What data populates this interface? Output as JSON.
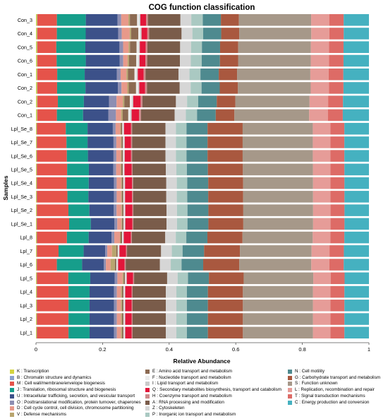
{
  "chart_data": {
    "type": "bar",
    "orientation": "horizontal",
    "stacked": true,
    "title": "COG function classification",
    "xlabel": "Relative Abundance",
    "ylabel": "Samples",
    "xlim": [
      0,
      1
    ],
    "xticks": [
      "0",
      "0.2",
      "0.4",
      "0.6",
      "0.8",
      "1"
    ],
    "categories": [
      "Con_3",
      "Con_4",
      "Con_5",
      "Con_6",
      "Con_1",
      "Con_2",
      "Con_2",
      "Con_1",
      "Lpl_Se_8",
      "Lpl_Se_7",
      "Lpl_Se_6",
      "Lpl_Se_5",
      "Lpl_Se_4",
      "Lpl_Se_3",
      "Lpl_Se_2",
      "Lpl_Se_1",
      "Lpl_8",
      "Lpl_7",
      "Lpl_6",
      "Lpl_5",
      "Lpl_4",
      "Lpl_3",
      "Lpl_2",
      "Lpl_1"
    ],
    "segment_order": [
      "K",
      "B",
      "M",
      "J",
      "U",
      "O",
      "D",
      "V",
      "E",
      "F",
      "I",
      "Q",
      "H",
      "A",
      "Z",
      "P",
      "N",
      "G",
      "S",
      "L",
      "T",
      "C"
    ],
    "series": [
      {
        "key": "K",
        "name": "K : Transcription",
        "color": "#d4d441",
        "values": [
          0.003,
          0.003,
          0.003,
          0.003,
          0.003,
          0.003,
          0.003,
          0.003,
          0.002,
          0.002,
          0.002,
          0.002,
          0.002,
          0.002,
          0.002,
          0.002,
          0.002,
          0.002,
          0.002,
          0.002,
          0.002,
          0.002,
          0.002,
          0.002
        ]
      },
      {
        "key": "B",
        "name": "B : Chromatin structure and dynamics",
        "color": "#8aa2ce",
        "values": [
          0.001,
          0.001,
          0.001,
          0.001,
          0.001,
          0.001,
          0.001,
          0.001,
          0.001,
          0.001,
          0.001,
          0.001,
          0.001,
          0.001,
          0.001,
          0.001,
          0.001,
          0.001,
          0.001,
          0.001,
          0.001,
          0.001,
          0.001,
          0.001
        ]
      },
      {
        "key": "M",
        "name": "M : Cell wall/membrane/envelope biogenesis",
        "color": "#e5534a",
        "values": [
          0.054,
          0.054,
          0.052,
          0.053,
          0.054,
          0.054,
          0.055,
          0.052,
          0.082,
          0.084,
          0.085,
          0.086,
          0.085,
          0.087,
          0.09,
          0.092,
          0.085,
          0.06,
          0.055,
          0.09,
          0.09,
          0.09,
          0.09,
          0.09
        ]
      },
      {
        "key": "J",
        "name": "J : Translation, ribosomal structure and biogenesis",
        "color": "#169e8b",
        "values": [
          0.08,
          0.08,
          0.08,
          0.08,
          0.075,
          0.078,
          0.07,
          0.07,
          0.062,
          0.06,
          0.06,
          0.062,
          0.063,
          0.06,
          0.06,
          0.062,
          0.062,
          0.07,
          0.07,
          0.063,
          0.06,
          0.06,
          0.06,
          0.06
        ]
      },
      {
        "key": "U",
        "name": "U : Intracellular trafficking, secretion, and vesicular transport",
        "color": "#3c5189",
        "values": [
          0.088,
          0.09,
          0.094,
          0.093,
          0.088,
          0.089,
          0.068,
          0.068,
          0.072,
          0.074,
          0.073,
          0.07,
          0.072,
          0.073,
          0.07,
          0.068,
          0.065,
          0.06,
          0.06,
          0.07,
          0.07,
          0.07,
          0.07,
          0.07
        ]
      },
      {
        "key": "O",
        "name": "O : Posttranslational modification, protein turnover, chaperones",
        "color": "#8d8eb2",
        "values": [
          0.01,
          0.01,
          0.01,
          0.01,
          0.01,
          0.01,
          0.02,
          0.02,
          0.008,
          0.008,
          0.008,
          0.008,
          0.008,
          0.008,
          0.008,
          0.008,
          0.008,
          0.006,
          0.006,
          0.008,
          0.008,
          0.008,
          0.008,
          0.008
        ]
      },
      {
        "key": "D",
        "name": "D : Cell cycle control, cell division, chromosome partitioning",
        "color": "#e8998a",
        "values": [
          0.02,
          0.022,
          0.015,
          0.012,
          0.016,
          0.016,
          0.017,
          0.014,
          0.013,
          0.013,
          0.013,
          0.013,
          0.013,
          0.013,
          0.014,
          0.012,
          0.016,
          0.013,
          0.013,
          0.015,
          0.012,
          0.012,
          0.012,
          0.012
        ]
      },
      {
        "key": "V",
        "name": "V : Defense mechanisms",
        "color": "#b8a56e",
        "values": [
          0.004,
          0.004,
          0.004,
          0.004,
          0.004,
          0.004,
          0.004,
          0.004,
          0.002,
          0.002,
          0.002,
          0.002,
          0.002,
          0.002,
          0.002,
          0.002,
          0.002,
          0.012,
          0.012,
          0.003,
          0.003,
          0.003,
          0.003,
          0.003
        ]
      },
      {
        "key": "E",
        "name": "E : Amino acid transport and metabolism",
        "color": "#8c6a52",
        "values": [
          0.02,
          0.02,
          0.018,
          0.02,
          0.018,
          0.02,
          0.015,
          0.015,
          0.004,
          0.004,
          0.004,
          0.004,
          0.004,
          0.004,
          0.004,
          0.004,
          0.004,
          0.004,
          0.004,
          0.004,
          0.004,
          0.004,
          0.004,
          0.004
        ]
      },
      {
        "key": "F",
        "name": "F : Nucleotide transport and metabolism",
        "color": "#ebebeb",
        "values": [
          0.006,
          0.006,
          0.006,
          0.006,
          0.006,
          0.006,
          0.006,
          0.006,
          0.003,
          0.003,
          0.003,
          0.003,
          0.003,
          0.003,
          0.003,
          0.003,
          0.003,
          0.003,
          0.003,
          0.003,
          0.003,
          0.003,
          0.003,
          0.003
        ]
      },
      {
        "key": "I",
        "name": "I : Lipid transport and metabolism",
        "color": "#cacaca",
        "values": [
          0.003,
          0.003,
          0.003,
          0.003,
          0.003,
          0.003,
          0.003,
          0.003,
          0.002,
          0.002,
          0.002,
          0.002,
          0.002,
          0.002,
          0.002,
          0.002,
          0.002,
          0.002,
          0.002,
          0.002,
          0.002,
          0.002,
          0.002,
          0.002
        ]
      },
      {
        "key": "Q",
        "name": "Q : Secondary metabolites biosynthesis, transport and catabolism",
        "color": "#e2163a",
        "values": [
          0.016,
          0.016,
          0.016,
          0.016,
          0.016,
          0.016,
          0.02,
          0.02,
          0.02,
          0.018,
          0.018,
          0.02,
          0.02,
          0.02,
          0.02,
          0.02,
          0.02,
          0.018,
          0.018,
          0.018,
          0.018,
          0.018,
          0.018,
          0.018
        ]
      },
      {
        "key": "H",
        "name": "H : Coenzyme transport and metabolism",
        "color": "#cd8a8a",
        "values": [
          0.005,
          0.005,
          0.005,
          0.005,
          0.005,
          0.005,
          0.005,
          0.005,
          0.003,
          0.003,
          0.003,
          0.003,
          0.003,
          0.003,
          0.003,
          0.003,
          0.003,
          0.003,
          0.003,
          0.003,
          0.003,
          0.003,
          0.003,
          0.003
        ]
      },
      {
        "key": "A",
        "name": "A : RNA processing and modification",
        "color": "#7a5c4a",
        "values": [
          0.09,
          0.09,
          0.09,
          0.09,
          0.09,
          0.09,
          0.09,
          0.09,
          0.095,
          0.095,
          0.095,
          0.095,
          0.095,
          0.095,
          0.095,
          0.095,
          0.095,
          0.095,
          0.095,
          0.095,
          0.095,
          0.095,
          0.095,
          0.095
        ]
      },
      {
        "key": "Z",
        "name": "Z : Cytoskeleten",
        "color": "#d6d6d6",
        "values": [
          0.03,
          0.03,
          0.03,
          0.03,
          0.03,
          0.03,
          0.03,
          0.03,
          0.03,
          0.03,
          0.03,
          0.03,
          0.03,
          0.03,
          0.03,
          0.03,
          0.03,
          0.03,
          0.03,
          0.03,
          0.03,
          0.03,
          0.03,
          0.03
        ]
      },
      {
        "key": "P",
        "name": "P : Inorganic ion transport and metabolism",
        "color": "#aac9c2",
        "values": [
          0.032,
          0.03,
          0.03,
          0.03,
          0.03,
          0.03,
          0.03,
          0.03,
          0.03,
          0.03,
          0.03,
          0.03,
          0.03,
          0.03,
          0.03,
          0.03,
          0.03,
          0.03,
          0.03,
          0.03,
          0.03,
          0.03,
          0.03,
          0.03
        ]
      },
      {
        "key": "N",
        "name": "N : Cell motility",
        "color": "#4e8a8f",
        "values": [
          0.05,
          0.05,
          0.05,
          0.05,
          0.05,
          0.05,
          0.05,
          0.05,
          0.06,
          0.06,
          0.06,
          0.06,
          0.06,
          0.06,
          0.06,
          0.06,
          0.06,
          0.06,
          0.06,
          0.06,
          0.06,
          0.06,
          0.06,
          0.06
        ]
      },
      {
        "key": "G",
        "name": "G : Carbohydrate transport and metabolism",
        "color": "#a9583f",
        "values": [
          0.05,
          0.05,
          0.05,
          0.05,
          0.05,
          0.05,
          0.05,
          0.05,
          0.1,
          0.1,
          0.1,
          0.1,
          0.1,
          0.1,
          0.1,
          0.1,
          0.1,
          0.1,
          0.1,
          0.1,
          0.1,
          0.1,
          0.1,
          0.1
        ]
      },
      {
        "key": "S",
        "name": "S : Function unknown",
        "color": "#a69889",
        "values": [
          0.2,
          0.2,
          0.2,
          0.2,
          0.2,
          0.2,
          0.2,
          0.2,
          0.2,
          0.2,
          0.2,
          0.2,
          0.2,
          0.2,
          0.2,
          0.2,
          0.2,
          0.2,
          0.2,
          0.2,
          0.2,
          0.2,
          0.2,
          0.2
        ]
      },
      {
        "key": "L",
        "name": "L : Replication, recombination and repair",
        "color": "#e69c98",
        "values": [
          0.05,
          0.05,
          0.05,
          0.05,
          0.05,
          0.05,
          0.05,
          0.05,
          0.05,
          0.05,
          0.05,
          0.05,
          0.05,
          0.05,
          0.05,
          0.05,
          0.05,
          0.05,
          0.05,
          0.05,
          0.05,
          0.05,
          0.05,
          0.05
        ]
      },
      {
        "key": "T",
        "name": "T : Signal transduction mechanisms",
        "color": "#dd6b66",
        "values": [
          0.04,
          0.04,
          0.04,
          0.04,
          0.04,
          0.04,
          0.04,
          0.04,
          0.04,
          0.04,
          0.04,
          0.04,
          0.04,
          0.04,
          0.04,
          0.04,
          0.04,
          0.04,
          0.04,
          0.04,
          0.04,
          0.04,
          0.04,
          0.04
        ]
      },
      {
        "key": "C",
        "name": "C : Energy production and conversion",
        "color": "#45b1c0",
        "values": [
          0.07,
          0.07,
          0.07,
          0.07,
          0.07,
          0.07,
          0.07,
          0.07,
          0.07,
          0.07,
          0.07,
          0.07,
          0.07,
          0.07,
          0.07,
          0.07,
          0.07,
          0.07,
          0.07,
          0.07,
          0.07,
          0.07,
          0.07,
          0.07
        ]
      }
    ],
    "legend": {
      "placement": "bottom",
      "columns": [
        [
          "K",
          "B",
          "M",
          "J",
          "U",
          "O",
          "D",
          "V"
        ],
        [
          "E",
          "F",
          "I",
          "Q",
          "H",
          "A",
          "Z",
          "P"
        ],
        [
          "N",
          "G",
          "S",
          "L",
          "T",
          "C"
        ]
      ]
    },
    "grid": false
  }
}
